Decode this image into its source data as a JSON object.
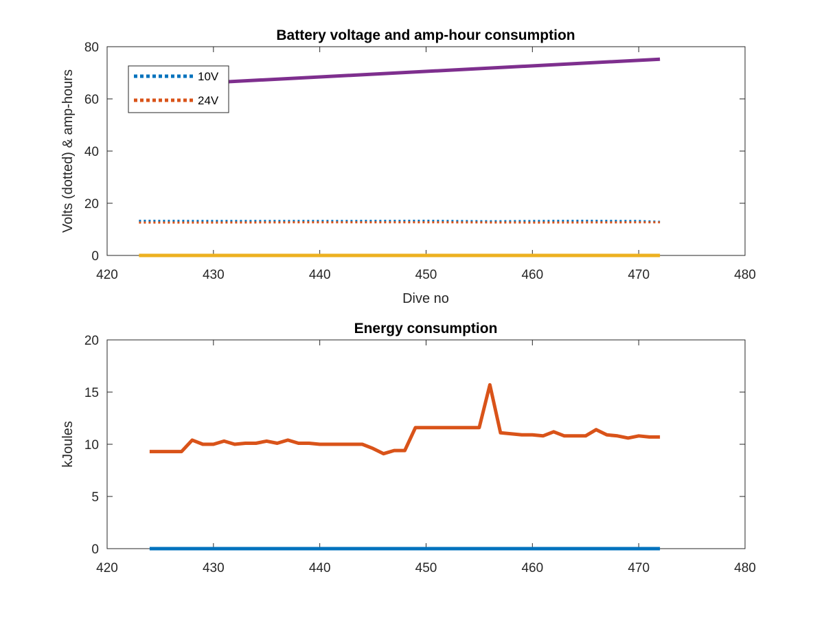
{
  "chart_data": [
    {
      "type": "line",
      "title": "Battery voltage and amp-hour consumption",
      "xlabel": "Dive no",
      "ylabel": "Volts (dotted) & amp-hours",
      "xlim": [
        420,
        480
      ],
      "ylim": [
        0,
        80
      ],
      "xticks": [
        420,
        430,
        440,
        450,
        460,
        470,
        480
      ],
      "yticks": [
        0,
        20,
        40,
        60,
        80
      ],
      "grid": false,
      "legend_position": "top-left",
      "series": [
        {
          "name": "10V",
          "style": "dotted",
          "color": "#0072BD",
          "x": [
            423,
            430,
            440,
            450,
            456,
            460,
            465,
            470,
            472
          ],
          "y": [
            13.3,
            13.2,
            13.2,
            13.3,
            13.1,
            13.2,
            13.3,
            13.2,
            12.9
          ]
        },
        {
          "name": "24V",
          "style": "dotted",
          "color": "#D95319",
          "x": [
            423,
            430,
            440,
            450,
            460,
            472
          ],
          "y": [
            12.6,
            12.6,
            12.7,
            12.7,
            12.6,
            12.7
          ]
        },
        {
          "style": "solid",
          "color": "#EDB120",
          "x": [
            423,
            472
          ],
          "y": [
            0,
            0
          ]
        },
        {
          "style": "solid",
          "color": "#7E2F8E",
          "x": [
            423,
            472
          ],
          "y": [
            64.8,
            75.2
          ]
        }
      ]
    },
    {
      "type": "line",
      "title": "Energy consumption",
      "xlabel": "",
      "ylabel": "kJoules",
      "xlim": [
        420,
        480
      ],
      "ylim": [
        0,
        20
      ],
      "xticks": [
        420,
        430,
        440,
        450,
        460,
        470,
        480
      ],
      "yticks": [
        0,
        5,
        10,
        15,
        20
      ],
      "grid": false,
      "series": [
        {
          "style": "solid",
          "color": "#0072BD",
          "x": [
            424,
            472
          ],
          "y": [
            0,
            0
          ]
        },
        {
          "style": "solid",
          "color": "#D95319",
          "x": [
            424,
            425,
            426,
            427,
            428,
            429,
            430,
            431,
            432,
            433,
            434,
            435,
            436,
            437,
            438,
            439,
            440,
            441,
            442,
            443,
            444,
            445,
            446,
            447,
            448,
            449,
            450,
            451,
            452,
            453,
            454,
            455,
            456,
            457,
            458,
            459,
            460,
            461,
            462,
            463,
            464,
            465,
            466,
            467,
            468,
            469,
            470,
            471,
            472
          ],
          "y": [
            9.3,
            9.3,
            9.3,
            9.3,
            10.4,
            10.0,
            10.0,
            10.3,
            10.0,
            10.1,
            10.1,
            10.3,
            10.1,
            10.4,
            10.1,
            10.1,
            10.0,
            10.0,
            10.0,
            10.0,
            10.0,
            9.6,
            9.1,
            9.4,
            9.4,
            11.6,
            11.6,
            11.6,
            11.6,
            11.6,
            11.6,
            11.6,
            15.7,
            11.1,
            11.0,
            10.9,
            10.9,
            10.8,
            11.2,
            10.8,
            10.8,
            10.8,
            11.4,
            10.9,
            10.8,
            10.6,
            10.8,
            10.7,
            10.7
          ]
        }
      ]
    }
  ]
}
